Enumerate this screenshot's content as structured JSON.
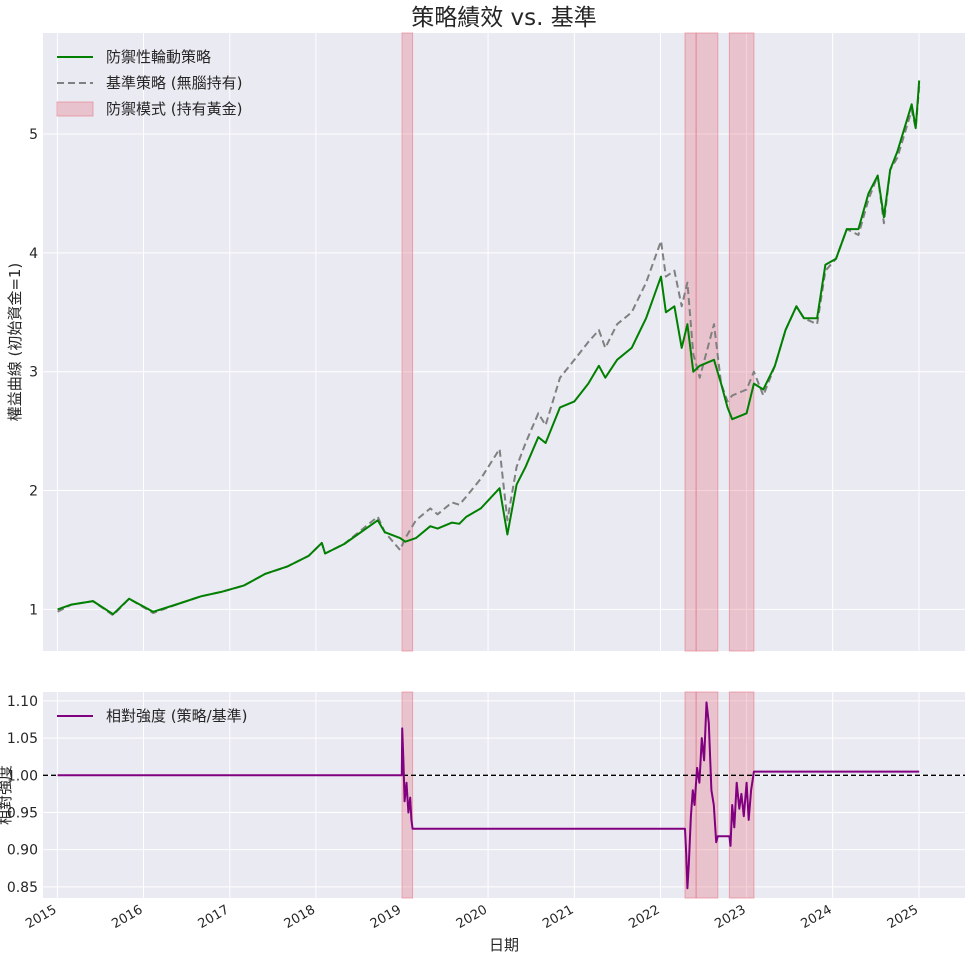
{
  "title": "策略績效 vs. 基準",
  "xlabel": "日期",
  "colors": {
    "strategy": "#008000",
    "benchmark": "#808080",
    "defense": "#e57a8a",
    "rs": "#800080",
    "background": "#eaeaf2",
    "grid": "#ffffff",
    "reference": "#000000"
  },
  "chart_data": [
    {
      "type": "line",
      "ylabel": "權益曲線 (初始資金=1)",
      "xlim": [
        "2014-11-01",
        "2025-07-15"
      ],
      "ylim": [
        0.65,
        5.85
      ],
      "yticks": [
        1,
        2,
        3,
        4,
        5
      ],
      "ytick_labels": [
        "1",
        "2",
        "3",
        "4",
        "5"
      ],
      "grid": true,
      "legend_position": "top-left",
      "legend": [
        "防禦性輪動策略",
        "基準策略 (無腦持有)",
        "防禦模式 (持有黃金)"
      ],
      "series": [
        {
          "name": "防禦性輪動策略",
          "style": "solid",
          "x": [
            "2015-01-02",
            "2015-03-01",
            "2015-06-01",
            "2015-08-25",
            "2015-11-01",
            "2016-02-11",
            "2016-06-01",
            "2016-09-01",
            "2016-12-01",
            "2017-03-01",
            "2017-06-01",
            "2017-09-01",
            "2017-12-01",
            "2018-01-26",
            "2018-02-09",
            "2018-05-01",
            "2018-09-20",
            "2018-10-20",
            "2018-12-24",
            "2019-01-15",
            "2019-03-01",
            "2019-05-01",
            "2019-06-01",
            "2019-08-01",
            "2019-09-01",
            "2019-10-01",
            "2019-12-01",
            "2020-02-19",
            "2020-03-23",
            "2020-05-01",
            "2020-06-08",
            "2020-08-01",
            "2020-09-01",
            "2020-11-01",
            "2021-01-01",
            "2021-03-01",
            "2021-04-15",
            "2021-05-12",
            "2021-07-01",
            "2021-09-01",
            "2021-11-01",
            "2022-01-03",
            "2022-01-24",
            "2022-03-01",
            "2022-04-01",
            "2022-04-25",
            "2022-05-20",
            "2022-06-16",
            "2022-08-16",
            "2022-09-15",
            "2022-10-12",
            "2022-11-01",
            "2023-01-01",
            "2023-02-01",
            "2023-03-13",
            "2023-05-01",
            "2023-06-15",
            "2023-07-31",
            "2023-09-01",
            "2023-10-27",
            "2023-12-01",
            "2024-01-15",
            "2024-03-01",
            "2024-04-19",
            "2024-06-01",
            "2024-07-10",
            "2024-08-05",
            "2024-09-01",
            "2024-10-01",
            "2024-12-01",
            "2024-12-18",
            "2025-01-02"
          ],
          "y": [
            1.0,
            1.04,
            1.07,
            0.96,
            1.09,
            0.98,
            1.05,
            1.11,
            1.15,
            1.2,
            1.3,
            1.36,
            1.45,
            1.56,
            1.47,
            1.55,
            1.75,
            1.65,
            1.6,
            1.57,
            1.6,
            1.7,
            1.68,
            1.73,
            1.72,
            1.78,
            1.85,
            2.02,
            1.63,
            2.05,
            2.2,
            2.45,
            2.4,
            2.7,
            2.75,
            2.9,
            3.05,
            2.95,
            3.1,
            3.2,
            3.45,
            3.8,
            3.5,
            3.55,
            3.2,
            3.4,
            3.0,
            3.05,
            3.1,
            2.9,
            2.7,
            2.6,
            2.65,
            2.9,
            2.85,
            3.05,
            3.35,
            3.55,
            3.45,
            3.45,
            3.9,
            3.95,
            4.2,
            4.2,
            4.5,
            4.65,
            4.3,
            4.7,
            4.85,
            5.25,
            5.05,
            5.45
          ]
        },
        {
          "name": "基準策略 (無腦持有)",
          "style": "dashed",
          "x": [
            "2015-01-02",
            "2015-03-01",
            "2015-06-01",
            "2015-08-25",
            "2015-11-01",
            "2016-02-11",
            "2016-06-01",
            "2016-09-01",
            "2016-12-01",
            "2017-03-01",
            "2017-06-01",
            "2017-09-01",
            "2017-12-01",
            "2018-01-26",
            "2018-02-09",
            "2018-05-01",
            "2018-09-20",
            "2018-10-20",
            "2018-12-24",
            "2019-01-15",
            "2019-03-01",
            "2019-05-01",
            "2019-06-01",
            "2019-08-01",
            "2019-09-01",
            "2019-10-01",
            "2019-12-01",
            "2020-02-19",
            "2020-03-23",
            "2020-05-01",
            "2020-06-08",
            "2020-08-01",
            "2020-09-01",
            "2020-11-01",
            "2021-01-01",
            "2021-03-01",
            "2021-04-15",
            "2021-05-12",
            "2021-07-01",
            "2021-09-01",
            "2021-11-01",
            "2022-01-03",
            "2022-01-24",
            "2022-03-01",
            "2022-04-01",
            "2022-04-25",
            "2022-05-20",
            "2022-06-16",
            "2022-08-16",
            "2022-09-15",
            "2022-10-12",
            "2022-11-01",
            "2023-01-01",
            "2023-02-01",
            "2023-03-13",
            "2023-05-01",
            "2023-06-15",
            "2023-07-31",
            "2023-09-01",
            "2023-10-27",
            "2023-12-01",
            "2024-01-15",
            "2024-03-01",
            "2024-04-19",
            "2024-06-01",
            "2024-07-10",
            "2024-08-05",
            "2024-09-01",
            "2024-10-01",
            "2024-12-01",
            "2024-12-18",
            "2025-01-02"
          ],
          "y": [
            0.98,
            1.04,
            1.07,
            0.95,
            1.09,
            0.97,
            1.05,
            1.11,
            1.15,
            1.2,
            1.3,
            1.36,
            1.45,
            1.56,
            1.47,
            1.55,
            1.78,
            1.65,
            1.5,
            1.6,
            1.75,
            1.85,
            1.8,
            1.9,
            1.88,
            1.95,
            2.1,
            2.35,
            1.75,
            2.2,
            2.4,
            2.65,
            2.55,
            2.95,
            3.1,
            3.25,
            3.35,
            3.2,
            3.4,
            3.5,
            3.75,
            4.1,
            3.8,
            3.85,
            3.55,
            3.75,
            3.15,
            2.95,
            3.4,
            2.9,
            2.75,
            2.8,
            2.85,
            3.0,
            2.8,
            3.05,
            3.35,
            3.55,
            3.45,
            3.4,
            3.85,
            3.95,
            4.2,
            4.15,
            4.45,
            4.65,
            4.25,
            4.7,
            4.8,
            5.2,
            5.05,
            5.4
          ]
        }
      ],
      "shaded_regions": [
        {
          "label": "防禦模式 (持有黃金)",
          "x": [
            "2019-01-01",
            "2019-02-15"
          ]
        },
        {
          "label": "防禦模式 (持有黃金)",
          "x": [
            "2022-04-15",
            "2022-06-01"
          ]
        },
        {
          "label": "防禦模式 (持有黃金)",
          "x": [
            "2022-06-01",
            "2022-09-01"
          ]
        },
        {
          "label": "防禦模式 (持有黃金)",
          "x": [
            "2022-10-20",
            "2023-02-01"
          ]
        }
      ]
    },
    {
      "type": "line",
      "ylabel": "相對強度",
      "xlabel": "日期",
      "xlim": [
        "2014-11-01",
        "2025-07-15"
      ],
      "ylim": [
        0.835,
        1.112
      ],
      "yticks": [
        0.85,
        0.9,
        0.95,
        1.0,
        1.05,
        1.1
      ],
      "ytick_labels": [
        "0.85",
        "0.90",
        "0.95",
        "1.00",
        "1.05",
        "1.10"
      ],
      "xticks": [
        "2015-01-01",
        "2016-01-01",
        "2017-01-01",
        "2018-01-01",
        "2019-01-01",
        "2020-01-01",
        "2021-01-01",
        "2022-01-01",
        "2023-01-01",
        "2024-01-01",
        "2025-01-01"
      ],
      "xtick_labels": [
        "2015",
        "2016",
        "2017",
        "2018",
        "2019",
        "2020",
        "2021",
        "2022",
        "2023",
        "2024",
        "2025"
      ],
      "reference_line": 1.0,
      "grid": true,
      "legend_position": "top-left",
      "legend": [
        "相對強度 (策略/基準)"
      ],
      "series": [
        {
          "name": "相對強度 (策略/基準)",
          "x": [
            "2015-01-02",
            "2018-12-31",
            "2019-01-02",
            "2019-01-07",
            "2019-01-12",
            "2019-01-20",
            "2019-01-28",
            "2019-02-05",
            "2019-02-10",
            "2019-02-15",
            "2022-04-15",
            "2022-04-20",
            "2022-04-25",
            "2022-05-01",
            "2022-05-10",
            "2022-05-18",
            "2022-05-25",
            "2022-06-05",
            "2022-06-15",
            "2022-06-25",
            "2022-07-05",
            "2022-07-15",
            "2022-07-25",
            "2022-08-05",
            "2022-08-15",
            "2022-08-25",
            "2022-09-01",
            "2022-10-20",
            "2022-10-25",
            "2022-11-01",
            "2022-11-10",
            "2022-11-20",
            "2022-12-01",
            "2022-12-10",
            "2022-12-20",
            "2023-01-01",
            "2023-01-10",
            "2023-01-20",
            "2023-02-01",
            "2025-01-02"
          ],
          "y": [
            1.0,
            1.0,
            1.063,
            1.02,
            0.965,
            0.99,
            0.95,
            0.97,
            0.94,
            0.928,
            0.928,
            0.895,
            0.848,
            0.88,
            0.945,
            0.98,
            0.96,
            1.01,
            0.99,
            1.05,
            1.02,
            1.098,
            1.07,
            0.98,
            0.96,
            0.91,
            0.918,
            0.918,
            0.905,
            0.96,
            0.93,
            0.99,
            0.955,
            0.975,
            0.945,
            0.99,
            0.94,
            0.98,
            1.005,
            1.005
          ]
        }
      ],
      "shaded_regions": [
        {
          "x": [
            "2019-01-01",
            "2019-02-15"
          ]
        },
        {
          "x": [
            "2022-04-15",
            "2022-06-01"
          ]
        },
        {
          "x": [
            "2022-06-01",
            "2022-09-01"
          ]
        },
        {
          "x": [
            "2022-10-20",
            "2023-02-01"
          ]
        }
      ]
    }
  ]
}
